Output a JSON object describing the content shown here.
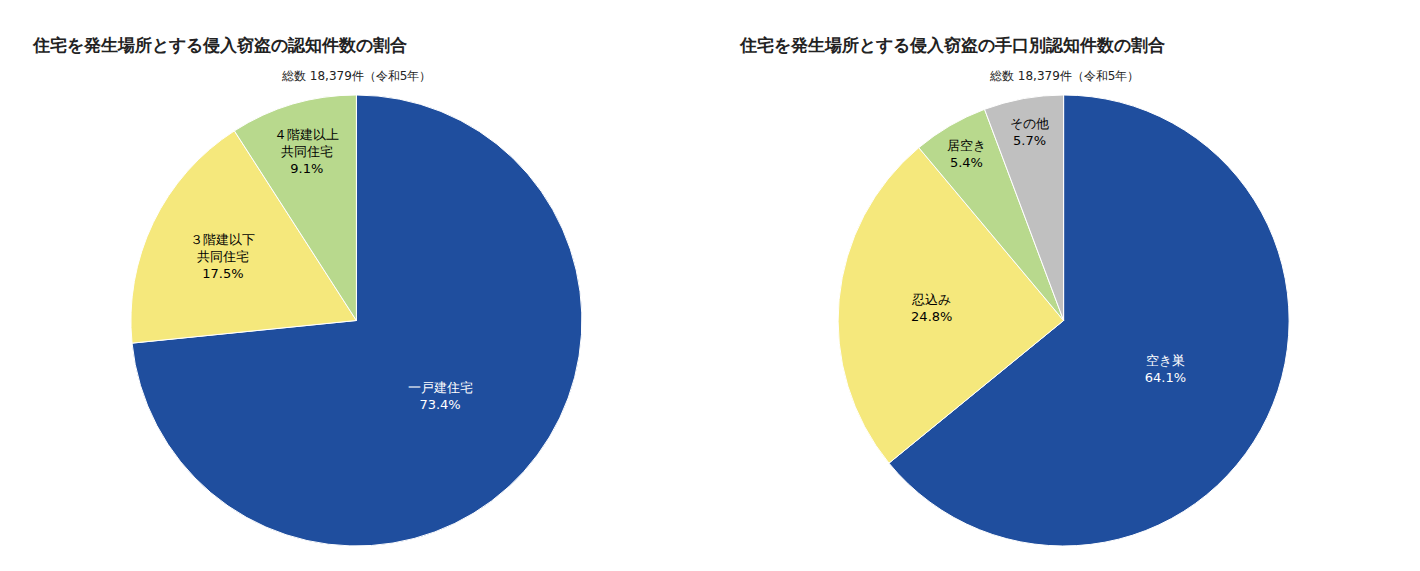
{
  "chart_data": [
    {
      "type": "pie",
      "title": "住宅を発生場所とする侵入窃盗の認知件数の割合",
      "subtitle": "総数 18,379件（令和5年）",
      "categories": [
        "一戸建住宅",
        "３階建以下\n共同住宅",
        "４階建以上\n共同住宅"
      ],
      "values": [
        73.4,
        17.5,
        9.1
      ],
      "value_labels": [
        "73.4%",
        "17.5%",
        "9.1%"
      ],
      "colors": [
        "#1f4e9e",
        "#f5e87c",
        "#b8d98d"
      ],
      "data_labels": true
    },
    {
      "type": "pie",
      "title": "住宅を発生場所とする侵入窃盗の手口別認知件数の割合",
      "subtitle": "総数 18,379件（令和5年）",
      "categories": [
        "空き巣",
        "忍込み",
        "居空き",
        "その他"
      ],
      "values": [
        64.1,
        24.8,
        5.4,
        5.7
      ],
      "value_labels": [
        "64.1%",
        "24.8%",
        "5.4%",
        "5.7%"
      ],
      "colors": [
        "#1f4e9e",
        "#f5e87c",
        "#b8d98d",
        "#c0c0c0"
      ],
      "data_labels": true
    }
  ]
}
